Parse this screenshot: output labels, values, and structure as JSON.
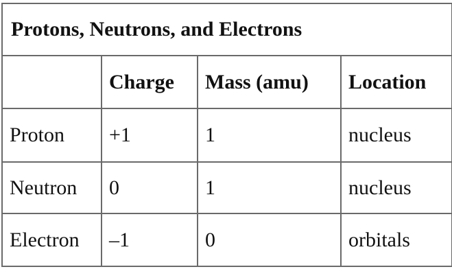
{
  "table": {
    "title": "Protons, Neutrons, and Electrons",
    "headers": [
      "",
      "Charge",
      "Mass (amu)",
      "Location"
    ],
    "rows": [
      [
        "Proton",
        "+1",
        "1",
        "nucleus"
      ],
      [
        "Neutron",
        "0",
        "1",
        "nucleus"
      ],
      [
        "Electron",
        "–1",
        "0",
        "orbitals"
      ]
    ]
  }
}
